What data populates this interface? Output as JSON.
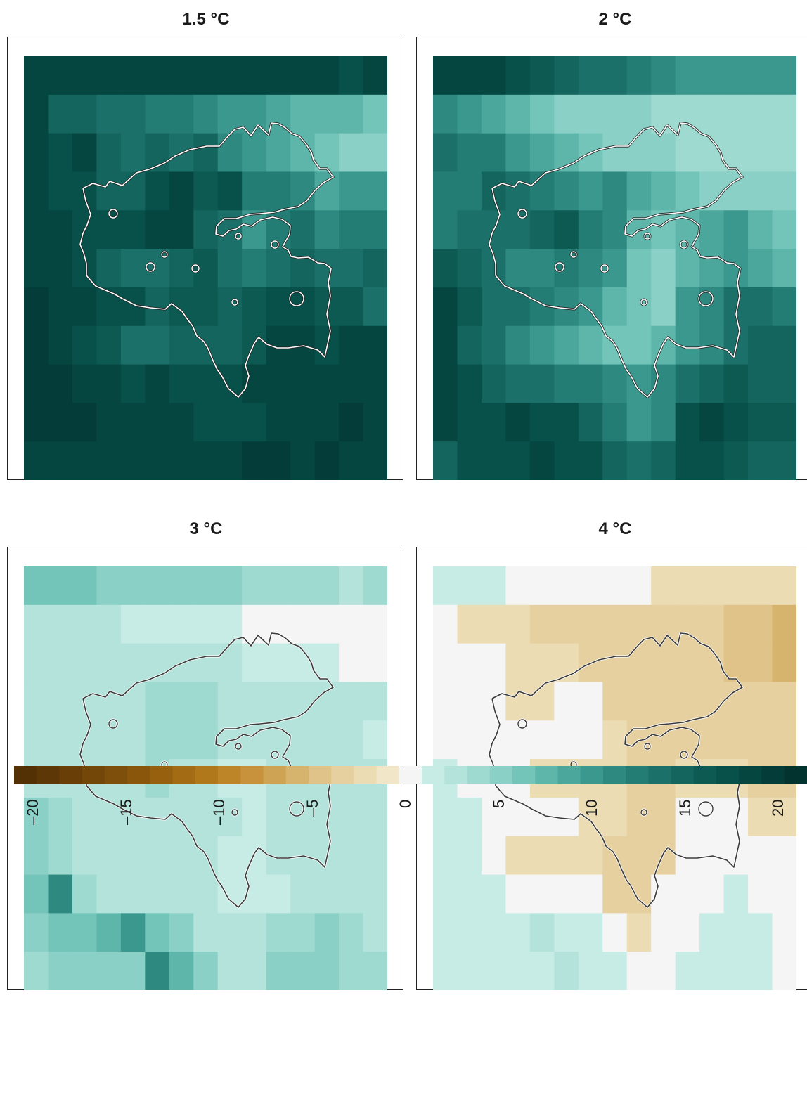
{
  "panels": [
    {
      "title": "1.5 °C",
      "outline_color": "#ffffff",
      "grid": [
        [
          17,
          17,
          17,
          17,
          17,
          17,
          17,
          17,
          17,
          17,
          17,
          17,
          17,
          16,
          17
        ],
        [
          17,
          14,
          14,
          13,
          12,
          11,
          11,
          10,
          9,
          9,
          8,
          7,
          7,
          7,
          6
        ],
        [
          17,
          16,
          17,
          14,
          13,
          14,
          13,
          14,
          10,
          9,
          8,
          7,
          6,
          5,
          5
        ],
        [
          17,
          16,
          16,
          14,
          14,
          16,
          17,
          15,
          16,
          11,
          11,
          10,
          8,
          9,
          9
        ],
        [
          17,
          17,
          16,
          16,
          16,
          17,
          17,
          14,
          12,
          9,
          11,
          12,
          10,
          11,
          11
        ],
        [
          17,
          17,
          16,
          14,
          12,
          12,
          14,
          15,
          13,
          11,
          12,
          14,
          12,
          13,
          14
        ],
        [
          18,
          17,
          17,
          16,
          16,
          14,
          15,
          15,
          14,
          15,
          16,
          16,
          15,
          15,
          13
        ],
        [
          18,
          17,
          16,
          15,
          13,
          13,
          14,
          14,
          14,
          15,
          17,
          17,
          16,
          17,
          17
        ],
        [
          18,
          18,
          17,
          17,
          16,
          17,
          16,
          16,
          16,
          17,
          17,
          17,
          17,
          17,
          17
        ],
        [
          18,
          18,
          18,
          17,
          17,
          17,
          17,
          16,
          16,
          16,
          17,
          17,
          17,
          18,
          17
        ],
        [
          17,
          17,
          17,
          17,
          17,
          17,
          17,
          17,
          17,
          18,
          18,
          17,
          18,
          17,
          17
        ]
      ]
    },
    {
      "title": "2 °C",
      "outline_color": "#ffffff",
      "grid": [
        [
          17,
          17,
          17,
          16,
          15,
          14,
          13,
          12,
          11,
          10,
          9,
          9,
          9,
          9,
          9
        ],
        [
          10,
          9,
          8,
          7,
          6,
          5,
          4,
          4,
          4,
          3,
          3,
          3,
          3,
          3,
          3
        ],
        [
          12,
          11,
          11,
          9,
          8,
          7,
          6,
          5,
          4,
          4,
          3,
          3,
          3,
          3,
          3
        ],
        [
          11,
          11,
          14,
          12,
          11,
          10,
          9,
          10,
          8,
          7,
          6,
          5,
          5,
          5,
          5
        ],
        [
          11,
          12,
          13,
          12,
          14,
          15,
          11,
          10,
          7,
          6,
          7,
          8,
          9,
          7,
          6
        ],
        [
          15,
          14,
          12,
          10,
          10,
          11,
          10,
          9,
          6,
          4,
          7,
          8,
          9,
          8,
          7
        ],
        [
          17,
          15,
          13,
          12,
          11,
          10,
          9,
          7,
          6,
          5,
          9,
          10,
          12,
          13,
          11
        ],
        [
          17,
          14,
          12,
          10,
          9,
          8,
          7,
          6,
          6,
          7,
          9,
          10,
          13,
          14,
          14
        ],
        [
          17,
          16,
          14,
          13,
          12,
          11,
          11,
          10,
          9,
          10,
          12,
          14,
          15,
          14,
          14
        ],
        [
          17,
          16,
          16,
          17,
          16,
          16,
          14,
          11,
          9,
          10,
          16,
          17,
          16,
          15,
          15
        ],
        [
          14,
          16,
          16,
          16,
          17,
          16,
          16,
          14,
          13,
          14,
          16,
          16,
          15,
          14,
          14
        ]
      ]
    },
    {
      "title": "3 °C",
      "outline_color": "#3a3a3a",
      "grid": [
        [
          6,
          6,
          6,
          5,
          5,
          5,
          5,
          4,
          4,
          3,
          3,
          3,
          3,
          2,
          3
        ],
        [
          2,
          2,
          2,
          2,
          1,
          1,
          1,
          1,
          1,
          0,
          0,
          0,
          0,
          0,
          0
        ],
        [
          2,
          2,
          2,
          2,
          2,
          2,
          2,
          2,
          2,
          1,
          1,
          1,
          1,
          0,
          0
        ],
        [
          2,
          2,
          2,
          2,
          2,
          3,
          3,
          3,
          2,
          2,
          2,
          2,
          2,
          2,
          2
        ],
        [
          2,
          2,
          2,
          2,
          2,
          3,
          3,
          3,
          2,
          2,
          2,
          2,
          2,
          2,
          1
        ],
        [
          2,
          2,
          2,
          2,
          2,
          3,
          2,
          2,
          1,
          1,
          2,
          2,
          2,
          2,
          2
        ],
        [
          4,
          3,
          2,
          2,
          2,
          2,
          2,
          2,
          2,
          1,
          2,
          2,
          2,
          2,
          2
        ],
        [
          5,
          3,
          2,
          2,
          2,
          2,
          2,
          2,
          1,
          1,
          2,
          2,
          2,
          2,
          2
        ],
        [
          6,
          10,
          3,
          2,
          2,
          2,
          2,
          2,
          1,
          1,
          1,
          2,
          2,
          2,
          2
        ],
        [
          5,
          6,
          6,
          7,
          9,
          6,
          5,
          2,
          2,
          2,
          3,
          3,
          4,
          3,
          2
        ],
        [
          3,
          4,
          4,
          4,
          4,
          10,
          7,
          4,
          2,
          2,
          4,
          5,
          4,
          3,
          3
        ]
      ]
    },
    {
      "title": "4 °C",
      "outline_color": "#3a3a3a",
      "grid": [
        [
          1,
          1,
          1,
          0,
          0,
          0,
          0,
          0,
          0,
          -2,
          -2,
          -2,
          -2,
          -2,
          -2
        ],
        [
          0,
          -2,
          -2,
          -2,
          -3,
          -3,
          -3,
          -3,
          -4,
          -4,
          -4,
          -4,
          -5,
          -5,
          -6
        ],
        [
          0,
          0,
          0,
          -2,
          -2,
          -2,
          -3,
          -3,
          -3,
          -4,
          -4,
          -4,
          -5,
          -5,
          -6
        ],
        [
          0,
          0,
          0,
          -2,
          -2,
          0,
          0,
          -3,
          -3,
          -4,
          -4,
          -4,
          -4,
          -4,
          -4
        ],
        [
          0,
          0,
          0,
          0,
          0,
          0,
          0,
          -2,
          -3,
          -3,
          -3,
          -3,
          -3,
          -3,
          -3
        ],
        [
          1,
          0,
          0,
          0,
          -2,
          -2,
          -2,
          -2,
          -3,
          -3,
          -2,
          -2,
          -2,
          -3,
          -3
        ],
        [
          1,
          1,
          0,
          0,
          0,
          0,
          -2,
          -2,
          -3,
          -3,
          0,
          0,
          0,
          -2,
          -2
        ],
        [
          1,
          1,
          0,
          -2,
          -2,
          -2,
          -2,
          -3,
          -3,
          -3,
          0,
          0,
          0,
          0,
          0
        ],
        [
          1,
          1,
          1,
          0,
          0,
          0,
          0,
          -3,
          -3,
          0,
          0,
          0,
          1,
          0,
          0
        ],
        [
          1,
          1,
          1,
          1,
          2,
          1,
          1,
          0,
          -2,
          0,
          0,
          1,
          1,
          1,
          0
        ],
        [
          1,
          1,
          1,
          1,
          1,
          2,
          1,
          1,
          0,
          0,
          1,
          1,
          1,
          1,
          0
        ]
      ]
    }
  ],
  "chart_data": {
    "type": "heatmap",
    "panel_titles": [
      "1.5 °C",
      "2 °C",
      "3 °C",
      "4 °C"
    ],
    "colorbar": {
      "range": [
        -20,
        20
      ],
      "ticks": [
        "–20",
        "–15",
        "–10",
        "–5",
        "0",
        "5",
        "10",
        "15",
        "20"
      ],
      "colors": [
        "#543005",
        "#5e3706",
        "#693f07",
        "#734708",
        "#7e4f0a",
        "#8a560b",
        "#96600f",
        "#a36b14",
        "#b0771b",
        "#bd8428",
        "#c7923b",
        "#cfa354",
        "#d7b46e",
        "#dfc388",
        "#e6d09f",
        "#ecdcb3",
        "#f1e6c7",
        "#f5f5f5",
        "#c7ebe5",
        "#b4e3db",
        "#9fdad1",
        "#8ad0c6",
        "#73c4b9",
        "#5eb6ab",
        "#4ba79c",
        "#3b988e",
        "#2e8a80",
        "#247d74",
        "#1b7169",
        "#13655e",
        "#0d5a53",
        "#08504a",
        "#054641",
        "#033c38",
        "#02332f"
      ]
    }
  }
}
